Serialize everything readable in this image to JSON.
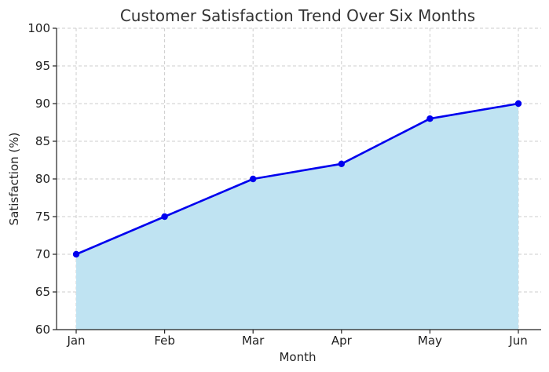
{
  "chart_data": {
    "type": "line",
    "title": "Customer Satisfaction Trend Over Six Months",
    "xlabel": "Month",
    "ylabel": "Satisfaction (%)",
    "categories": [
      "Jan",
      "Feb",
      "Mar",
      "Apr",
      "May",
      "Jun"
    ],
    "series": [
      {
        "name": "Satisfaction",
        "values": [
          70,
          75,
          80,
          82,
          88,
          90
        ]
      }
    ],
    "ylim": [
      60,
      100
    ],
    "yticks": [
      "60",
      "65",
      "70",
      "75",
      "80",
      "85",
      "90",
      "95",
      "100"
    ],
    "grid": true,
    "fill_under_line": true,
    "colors": {
      "line": "#0000ee",
      "marker": "#0000ee",
      "fill": "#bfe3f2"
    }
  }
}
